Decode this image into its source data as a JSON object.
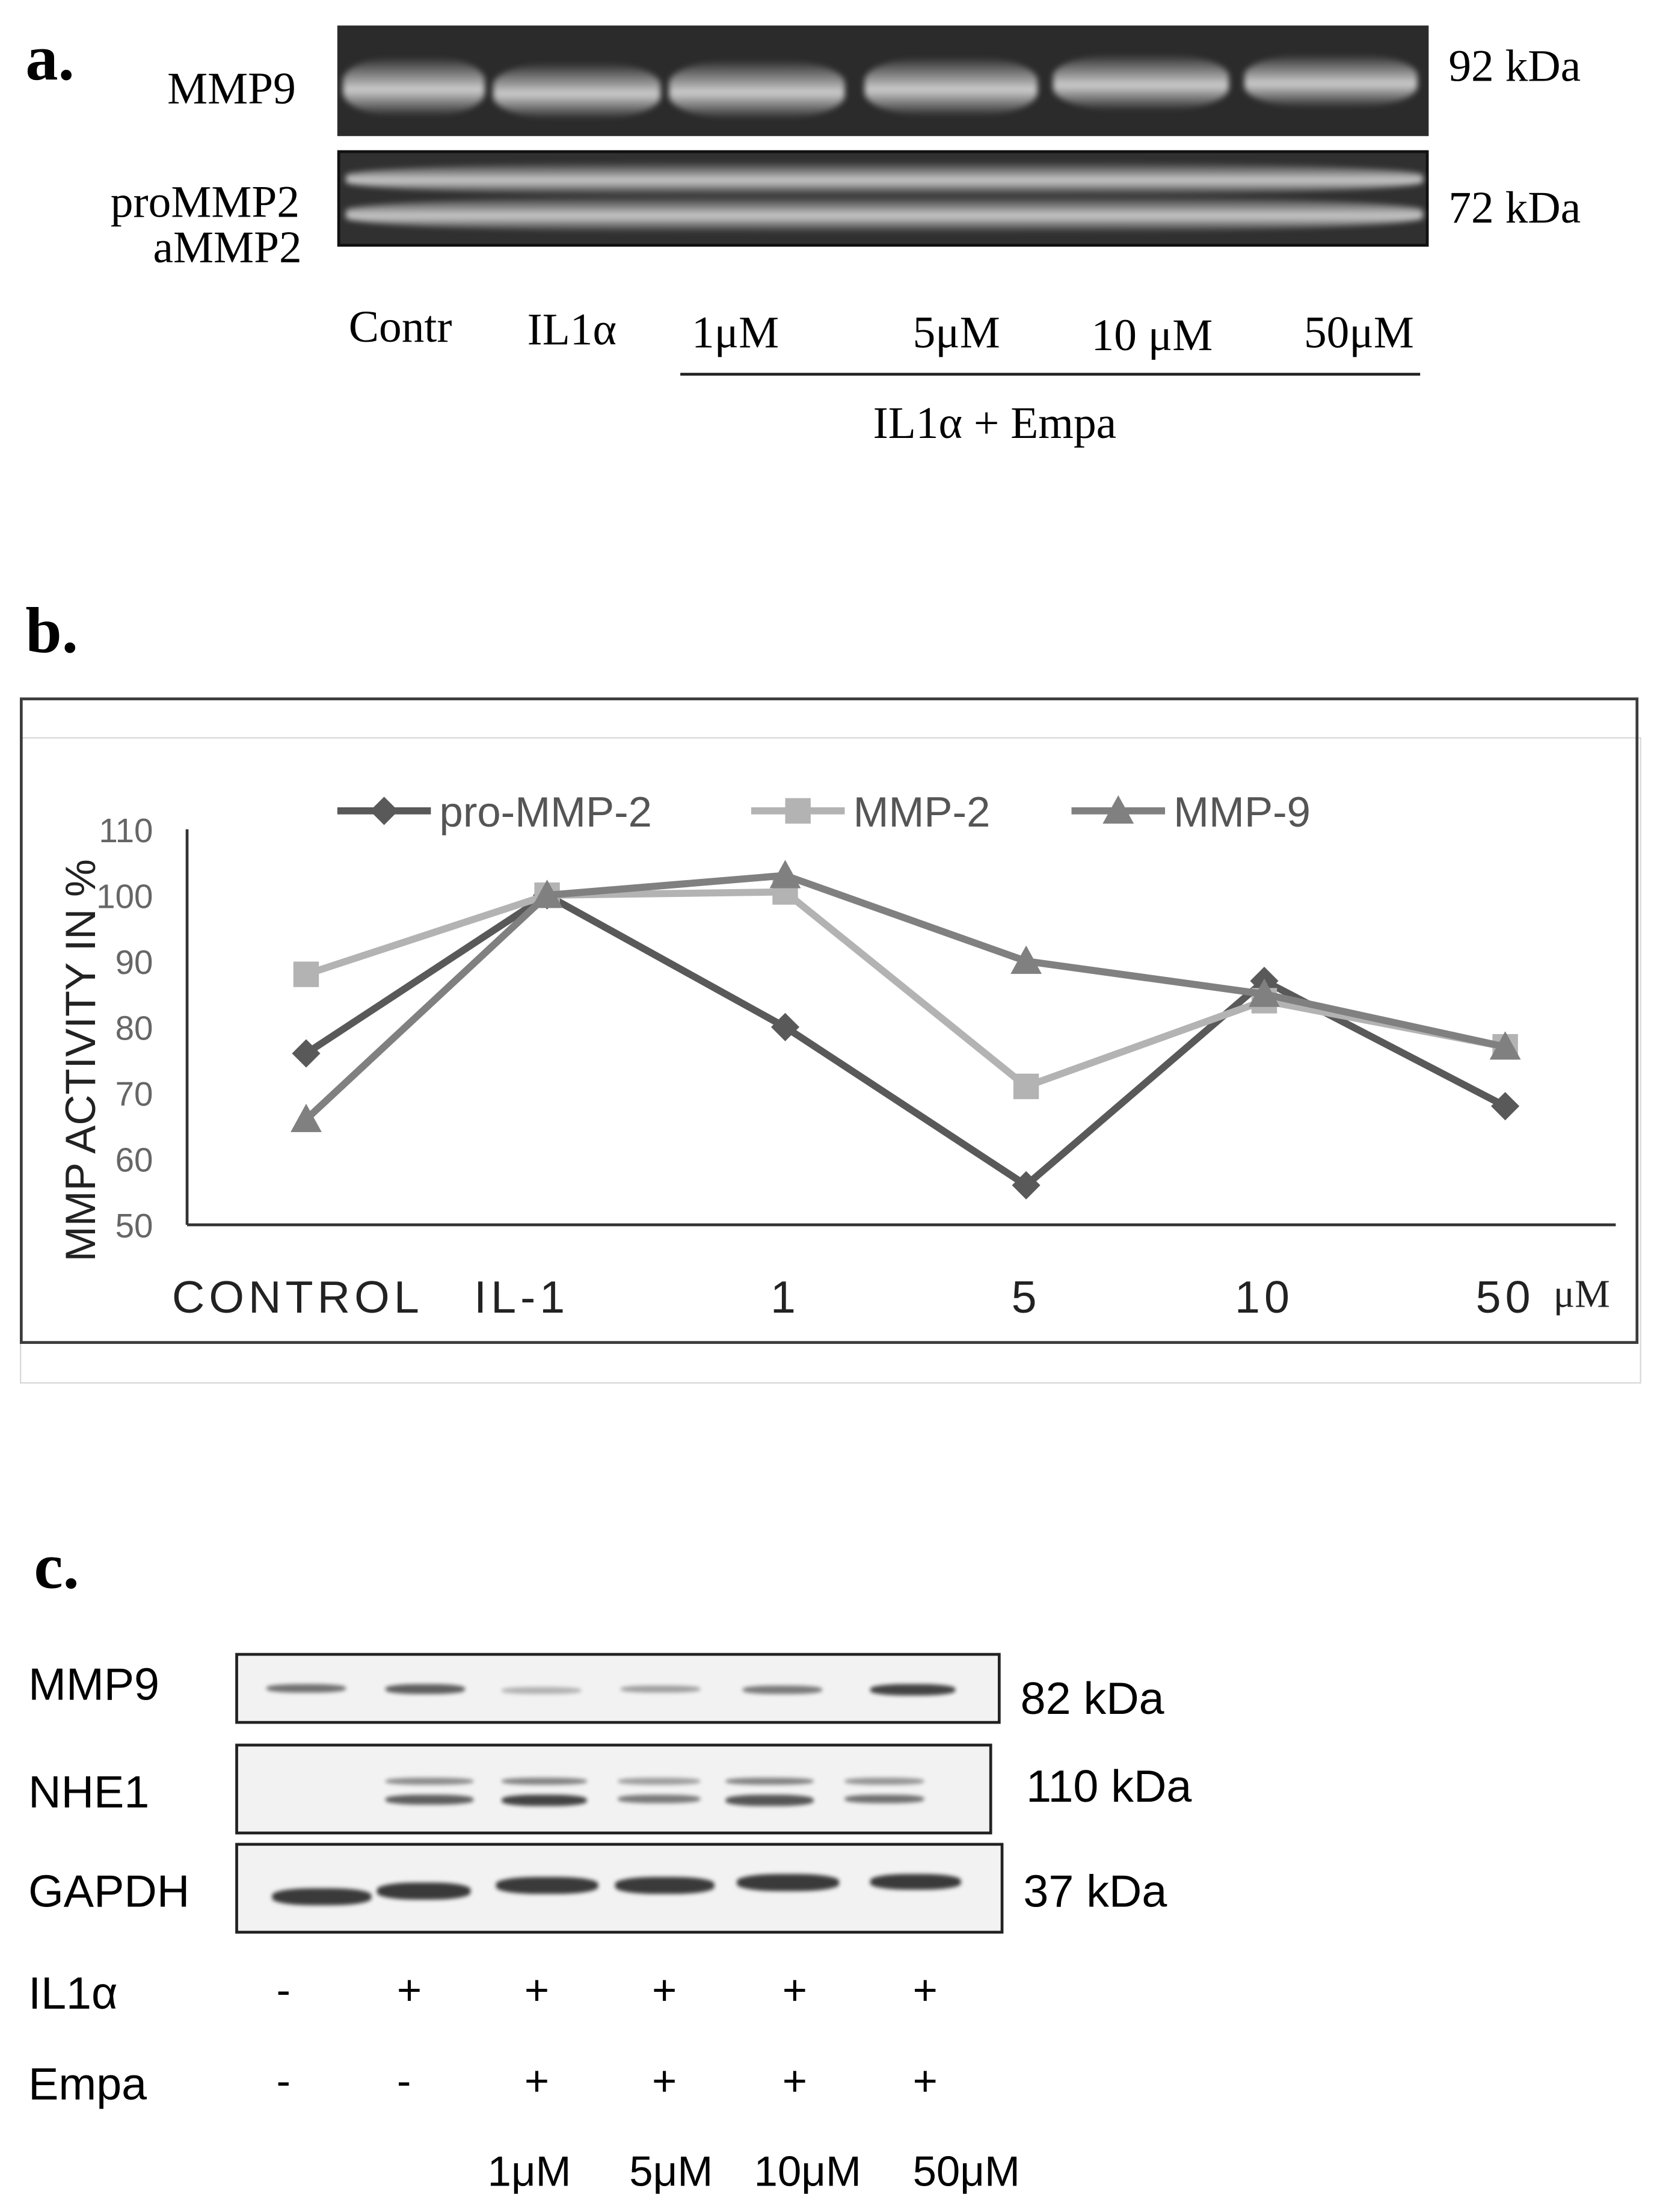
{
  "panel_a": {
    "letter": "a.",
    "label_mmp9": "MMP9",
    "label_prommp2": "proMMP2",
    "label_ammp2": "aMMP2",
    "size_mmp9": "92 kDa",
    "size_mmp2": "72 kDa",
    "lanes": [
      "Contr",
      "IL1α",
      "1μM",
      "5μM",
      "10 μM",
      "50μM"
    ],
    "group_label": "IL1α + Empa"
  },
  "panel_b": {
    "letter": "b.",
    "unit": "μM"
  },
  "chart_data": {
    "type": "line",
    "ylabel": "MMP ACTIVITY IN %",
    "ylim": [
      50,
      110
    ],
    "yticks": [
      50,
      60,
      70,
      80,
      90,
      100,
      110
    ],
    "categories": [
      "CONTROL",
      "IL-1",
      "1",
      "5",
      "10",
      "50"
    ],
    "legend_position": "top",
    "grid": false,
    "series": [
      {
        "name": "pro-MMP-2",
        "marker": "diamond",
        "color": "#595959",
        "values": [
          76,
          100,
          80,
          56,
          87,
          68
        ]
      },
      {
        "name": "MMP-2",
        "marker": "square",
        "color": "#b3b3b3",
        "values": [
          88,
          100,
          100.5,
          71,
          84,
          77
        ]
      },
      {
        "name": "MMP-9",
        "marker": "triangle",
        "color": "#808080",
        "values": [
          66,
          100,
          103,
          90,
          85,
          77
        ]
      }
    ]
  },
  "panel_c": {
    "letter": "c.",
    "rows": [
      {
        "label": "MMP9",
        "size": "82 kDa"
      },
      {
        "label": "NHE1",
        "size": "110 kDa"
      },
      {
        "label": "GAPDH",
        "size": "37 kDa"
      }
    ],
    "il1a_label": "IL1α",
    "empa_label": "Empa",
    "il1a_signs": [
      "-",
      "+",
      "+",
      "+",
      "+",
      "+"
    ],
    "empa_signs": [
      "-",
      "-",
      "+",
      "+",
      "+",
      "+"
    ],
    "doses": [
      "1μM",
      "5μM",
      "10μM",
      "50μM"
    ]
  }
}
